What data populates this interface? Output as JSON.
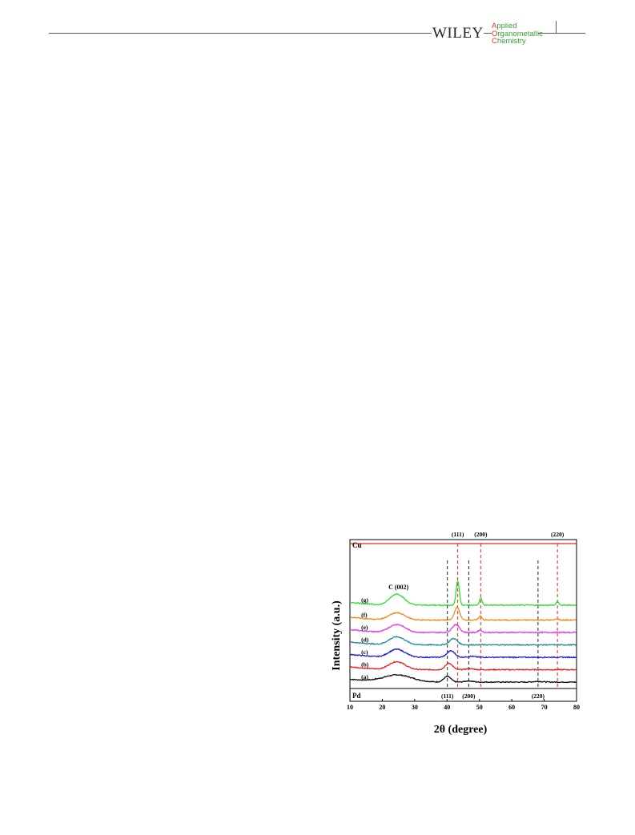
{
  "header": {
    "publisher": "WILEY",
    "journal_line1": "Applied",
    "journal_line2": "Organometallic",
    "journal_line3": "Chemistry",
    "journal_color": "#3aa135",
    "initial_color": "#d9342b"
  },
  "chart_data": {
    "type": "line",
    "xlabel": "2θ (degree)",
    "ylabel": "Intensity (a.u.)",
    "xlim": [
      10,
      80
    ],
    "xticks": [
      10,
      20,
      30,
      40,
      50,
      60,
      70,
      80
    ],
    "grid": false,
    "reference_top": {
      "label": "Cu",
      "color": "#e8231e",
      "peaks": [
        {
          "x": 43.3,
          "label": "(111)"
        },
        {
          "x": 50.4,
          "label": "(200)"
        },
        {
          "x": 74.1,
          "label": "(220)"
        }
      ]
    },
    "reference_bottom": {
      "label": "Pd",
      "color": "#222222",
      "peaks": [
        {
          "x": 40.1,
          "label": "(111)"
        },
        {
          "x": 46.7,
          "label": "(200)"
        },
        {
          "x": 68.1,
          "label": "(220)"
        }
      ]
    },
    "annotations": [
      {
        "text": "C (002)",
        "x": 25.0
      }
    ],
    "series": [
      {
        "name": "(a)",
        "color": "#111111",
        "offset": 0,
        "peaks": [
          [
            24.5,
            9,
            4.5
          ],
          [
            40.1,
            7,
            1.1
          ],
          [
            46.7,
            1.5,
            1.2
          ],
          [
            68.1,
            0.8,
            1.5
          ]
        ]
      },
      {
        "name": "(b)",
        "color": "#e8231e",
        "offset": 1,
        "peaks": [
          [
            24.5,
            10,
            2.5
          ],
          [
            40.6,
            8,
            1.1
          ],
          [
            47.0,
            1.2,
            1.2
          ]
        ]
      },
      {
        "name": "(c)",
        "color": "#1f1fd8",
        "offset": 2,
        "peaks": [
          [
            24.5,
            10,
            2.5
          ],
          [
            41.2,
            8,
            1.2
          ],
          [
            47.5,
            1.2,
            1.2
          ]
        ]
      },
      {
        "name": "(d)",
        "color": "#1b8e8e",
        "offset": 3,
        "peaks": [
          [
            24.5,
            10,
            2.5
          ],
          [
            42.0,
            8,
            1.2
          ]
        ]
      },
      {
        "name": "(e)",
        "color": "#e835e8",
        "offset": 4,
        "peaks": [
          [
            24.5,
            10,
            2.5
          ],
          [
            42.7,
            10,
            1.1
          ],
          [
            50.2,
            3,
            0.6
          ]
        ]
      },
      {
        "name": "(f)",
        "color": "#f08a1a",
        "offset": 5,
        "peaks": [
          [
            24.5,
            9,
            2.5
          ],
          [
            43.1,
            16,
            0.8
          ],
          [
            50.3,
            5,
            0.5
          ],
          [
            74.0,
            1.5,
            0.5
          ]
        ]
      },
      {
        "name": "(g)",
        "color": "#2fe02f",
        "offset": 6.2,
        "peaks": [
          [
            24.5,
            14,
            2.2
          ],
          [
            43.3,
            30,
            0.5
          ],
          [
            50.4,
            9,
            0.4
          ],
          [
            74.1,
            5,
            0.35
          ]
        ]
      }
    ]
  }
}
